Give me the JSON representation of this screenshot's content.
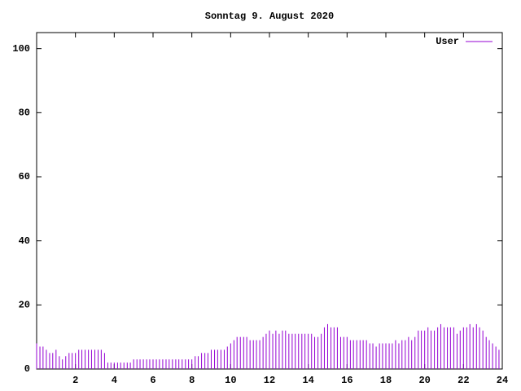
{
  "chart_data": {
    "type": "impulse",
    "title": "Sonntag 9. August 2020",
    "x": [
      0,
      0.17,
      0.33,
      0.5,
      0.67,
      0.83,
      1,
      1.17,
      1.33,
      1.5,
      1.67,
      1.83,
      2,
      2.17,
      2.33,
      2.5,
      2.67,
      2.83,
      3,
      3.17,
      3.33,
      3.5,
      3.67,
      3.83,
      4,
      4.17,
      4.33,
      4.5,
      4.67,
      4.83,
      5,
      5.17,
      5.33,
      5.5,
      5.67,
      5.83,
      6,
      6.17,
      6.33,
      6.5,
      6.67,
      6.83,
      7,
      7.17,
      7.33,
      7.5,
      7.67,
      7.83,
      8,
      8.17,
      8.33,
      8.5,
      8.67,
      8.83,
      9,
      9.17,
      9.33,
      9.5,
      9.67,
      9.83,
      10,
      10.17,
      10.33,
      10.5,
      10.67,
      10.83,
      11,
      11.17,
      11.33,
      11.5,
      11.67,
      11.83,
      12,
      12.17,
      12.33,
      12.5,
      12.67,
      12.83,
      13,
      13.17,
      13.33,
      13.5,
      13.67,
      13.83,
      14,
      14.17,
      14.33,
      14.5,
      14.67,
      14.83,
      15,
      15.17,
      15.33,
      15.5,
      15.67,
      15.83,
      16,
      16.17,
      16.33,
      16.5,
      16.67,
      16.83,
      17,
      17.17,
      17.33,
      17.5,
      17.67,
      17.83,
      18,
      18.17,
      18.33,
      18.5,
      18.67,
      18.83,
      19,
      19.17,
      19.33,
      19.5,
      19.67,
      19.83,
      20,
      20.17,
      20.33,
      20.5,
      20.67,
      20.83,
      21,
      21.17,
      21.33,
      21.5,
      21.67,
      21.83,
      22,
      22.17,
      22.33,
      22.5,
      22.67,
      22.83,
      23,
      23.17,
      23.33,
      23.5,
      23.67,
      23.83
    ],
    "series": [
      {
        "name": "User",
        "color": "#9400d3",
        "values": [
          8,
          7,
          7,
          6,
          5,
          5,
          6,
          4,
          3,
          4,
          5,
          5,
          5,
          6,
          6,
          6,
          6,
          6,
          6,
          6,
          6,
          5,
          2,
          2,
          2,
          2,
          2,
          2,
          2,
          2,
          3,
          3,
          3,
          3,
          3,
          3,
          3,
          3,
          3,
          3,
          3,
          3,
          3,
          3,
          3,
          3,
          3,
          3,
          3,
          4,
          4,
          5,
          5,
          5,
          6,
          6,
          6,
          6,
          6,
          7,
          8,
          9,
          10,
          10,
          10,
          10,
          9,
          9,
          9,
          9,
          10,
          11,
          12,
          11,
          12,
          11,
          12,
          12,
          11,
          11,
          11,
          11,
          11,
          11,
          11,
          11,
          10,
          10,
          11,
          13,
          14,
          13,
          13,
          13,
          10,
          10,
          10,
          9,
          9,
          9,
          9,
          9,
          9,
          8,
          8,
          7,
          8,
          8,
          8,
          8,
          8,
          9,
          8,
          9,
          9,
          10,
          9,
          10,
          12,
          12,
          12,
          13,
          12,
          12,
          13,
          14,
          13,
          13,
          13,
          13,
          11,
          12,
          13,
          13,
          14,
          13,
          14,
          13,
          12,
          10,
          9,
          8,
          7,
          6
        ]
      }
    ],
    "xlim": [
      0,
      24
    ],
    "xticks": [
      2,
      4,
      6,
      8,
      10,
      12,
      14,
      16,
      18,
      20,
      22,
      24
    ],
    "ylim": [
      0,
      105
    ],
    "yticks": [
      0,
      20,
      40,
      60,
      80,
      100
    ],
    "legend": "top-right"
  }
}
